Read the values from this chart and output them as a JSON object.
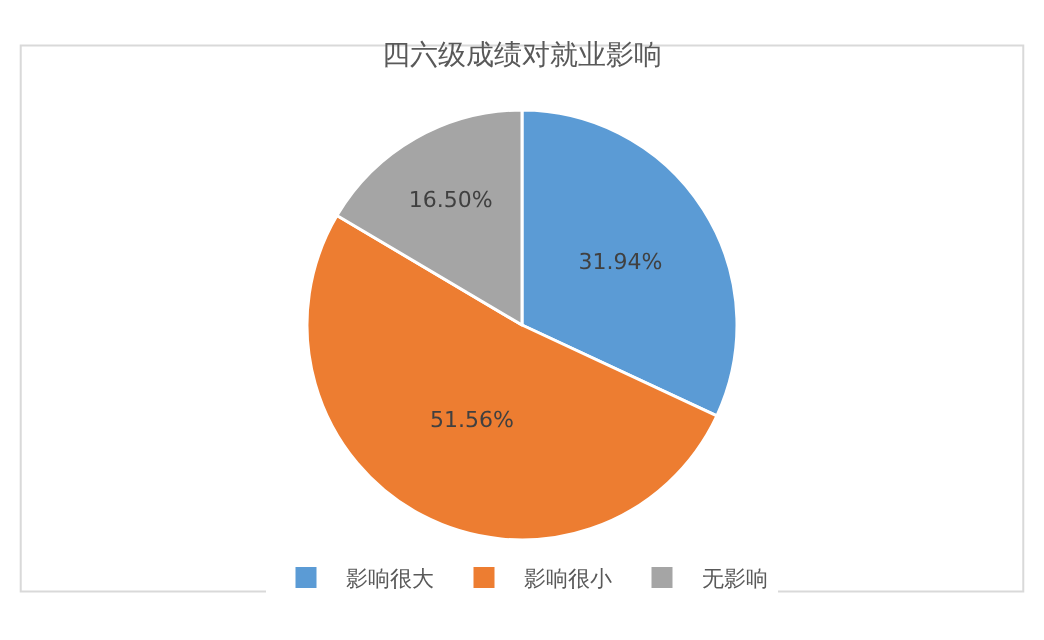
{
  "chart_data": {
    "type": "pie",
    "title": "四六级成绩对就业影响",
    "categories": [
      "影响很大",
      "影响很小",
      "无影响"
    ],
    "values": [
      31.94,
      51.56,
      16.5
    ],
    "colors": [
      "#5b9bd5",
      "#ed7d31",
      "#a5a5a5"
    ],
    "value_labels": [
      "31.94%",
      "51.56%",
      "16.50%"
    ],
    "legend": "bottom"
  }
}
